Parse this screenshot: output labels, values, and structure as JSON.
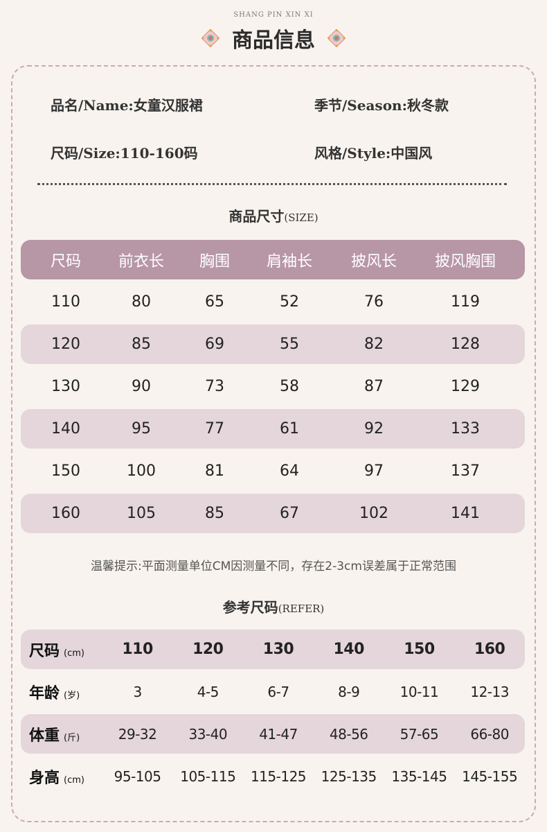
{
  "header": {
    "subtitle": "SHANG PIN XIN XI",
    "title": "商品信息"
  },
  "info": {
    "name": "品名/Name:女童汉服裙",
    "season": "季节/Season:秋冬款",
    "size": "尺码/Size:110-160码",
    "style": "风格/Style:中国风"
  },
  "size_section": {
    "title": "商品尺寸",
    "title_en": "(SIZE)",
    "headers": [
      "尺码",
      "前衣长",
      "胸围",
      "肩袖长",
      "披风长",
      "披风胸围"
    ],
    "rows": [
      [
        "110",
        "80",
        "65",
        "52",
        "76",
        "119"
      ],
      [
        "120",
        "85",
        "69",
        "55",
        "82",
        "128"
      ],
      [
        "130",
        "90",
        "73",
        "58",
        "87",
        "129"
      ],
      [
        "140",
        "95",
        "77",
        "61",
        "92",
        "133"
      ],
      [
        "150",
        "100",
        "81",
        "64",
        "97",
        "137"
      ],
      [
        "160",
        "105",
        "85",
        "67",
        "102",
        "141"
      ]
    ]
  },
  "tip": "温馨提示:平面测量单位CM因测量不同，存在2-3cm误差属于正常范围",
  "refer_section": {
    "title": "参考尺码",
    "title_en": "(REFER)",
    "rows": [
      {
        "label": "尺码",
        "unit": "(cm)",
        "values": [
          "110",
          "120",
          "130",
          "140",
          "150",
          "160"
        ]
      },
      {
        "label": "年龄",
        "unit": "(岁)",
        "values": [
          "3",
          "4-5",
          "6-7",
          "8-9",
          "10-11",
          "12-13"
        ]
      },
      {
        "label": "体重",
        "unit": "(斤)",
        "values": [
          "29-32",
          "33-40",
          "41-47",
          "48-56",
          "57-65",
          "66-80"
        ]
      },
      {
        "label": "身高",
        "unit": "(cm)",
        "values": [
          "95-105",
          "105-115",
          "115-125",
          "125-135",
          "135-145",
          "145-155"
        ]
      }
    ]
  },
  "icons": {
    "left": "ornament-flower-icon",
    "right": "ornament-flower-icon"
  },
  "colors": {
    "header_row": "#b796a6",
    "alt_row": "#e4d6da",
    "border": "#c9a9b6",
    "background": "#f8f3ee"
  }
}
